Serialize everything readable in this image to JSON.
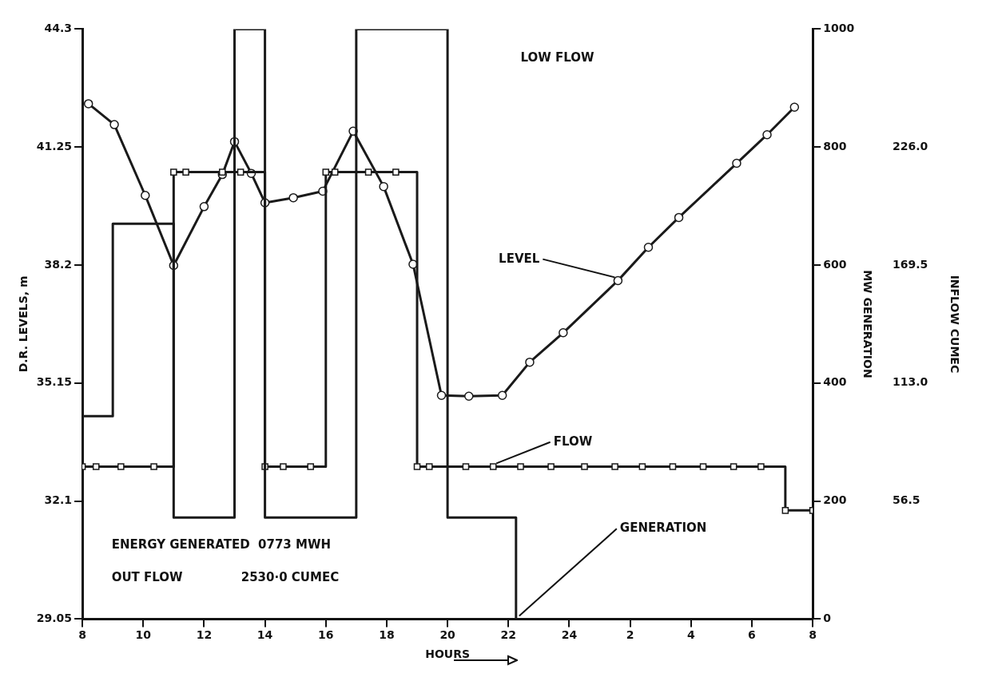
{
  "chart_data": {
    "type": "line",
    "xlabel": "HOURS",
    "ylabel": "D.R. LEVELS, m",
    "y2label": "MW GENERATION",
    "y3label": "INFLOW CUMEC",
    "xlim": [
      "--01-01T08:00",
      "--01-02T08:00"
    ],
    "xticks": [
      {
        "value": "--01-01T08:00",
        "label": "8"
      },
      {
        "value": "--01-01T10:00",
        "label": "10"
      },
      {
        "value": "--01-01T12:00",
        "label": "12"
      },
      {
        "value": "--01-01T14:00",
        "label": "14"
      },
      {
        "value": "--01-01T16:00",
        "label": "16"
      },
      {
        "value": "--01-01T18:00",
        "label": "18"
      },
      {
        "value": "--01-01T20:00",
        "label": "20"
      },
      {
        "value": "--01-01T22:00",
        "label": "22"
      },
      {
        "value": "--01-02T00:00",
        "label": "24"
      },
      {
        "value": "--01-02T02:00",
        "label": "2"
      },
      {
        "value": "--01-02T04:00",
        "label": "4"
      },
      {
        "value": "--01-02T06:00",
        "label": "6"
      },
      {
        "value": "--01-02T08:00",
        "label": "8"
      }
    ],
    "ylim": [
      29.05,
      44.3
    ],
    "yticks": [
      29.05,
      32.1,
      35.15,
      38.2,
      41.25,
      44.3
    ],
    "y2lim": [
      0,
      1000
    ],
    "y2ticks": [
      0,
      200,
      400,
      600,
      800,
      1000
    ],
    "y3lim": [
      0,
      282.5
    ],
    "y3ticks": [
      {
        "value": 56.5,
        "label": "56.5"
      },
      {
        "value": 113,
        "label": "113.0"
      },
      {
        "value": 169.5,
        "label": "169.5"
      },
      {
        "value": 226,
        "label": "226.0"
      }
    ],
    "grid": false,
    "legend": false,
    "series": [
      {
        "name": "LEVEL",
        "marker": "circle",
        "color": "#1a1a1a",
        "x": [
          "--01-01T08:12",
          "--01-01T09:03",
          "--01-01T10:04",
          "--01-01T11:00",
          "--01-01T12:00",
          "--01-01T12:36",
          "--01-01T13:00",
          "--01-01T13:33",
          "--01-01T14:00",
          "--01-01T14:56",
          "--01-01T15:54",
          "--01-01T16:54",
          "--01-01T17:54",
          "--01-01T18:52",
          "--01-01T19:48",
          "--01-01T20:42",
          "--01-01T21:48",
          "--01-01T22:42",
          "--01-01T23:48",
          "--01-02T01:36",
          "--01-02T02:36",
          "--01-02T03:36",
          "--01-02T05:30",
          "--01-02T06:30",
          "--01-02T07:24"
        ],
        "values": [
          42.37,
          41.83,
          40,
          38.19,
          39.71,
          40.54,
          41.39,
          40.57,
          39.81,
          39.94,
          40.11,
          41.66,
          40.23,
          38.22,
          34.83,
          34.81,
          34.83,
          35.69,
          36.45,
          37.8,
          38.66,
          39.43,
          40.83,
          41.57,
          42.28
        ]
      },
      {
        "name": "FLOW",
        "type": "step",
        "marker": "square",
        "axis": "y3",
        "color": "#1a1a1a",
        "x": [
          "--01-01T08:00",
          "--01-01T08:27",
          "--01-01T09:16",
          "--01-01T10:21",
          "--01-01T11:00",
          "--01-01T11:24",
          "--01-01T12:36",
          "--01-01T13:12",
          "--01-01T14:00",
          "--01-01T14:36",
          "--01-01T15:30",
          "--01-01T16:00",
          "--01-01T16:18",
          "--01-01T17:24",
          "--01-01T18:18",
          "--01-01T19:00",
          "--01-01T19:24",
          "--01-01T20:36",
          "--01-01T21:30",
          "--01-01T22:24",
          "--01-01T23:24",
          "--01-02T00:30",
          "--01-02T01:30",
          "--01-02T02:24",
          "--01-02T03:24",
          "--01-02T04:24",
          "--01-02T05:24",
          "--01-02T06:18",
          "--01-02T07:06",
          "--01-02T08:00"
        ],
        "values": [
          73,
          73,
          73,
          73,
          214,
          214,
          214,
          214,
          73,
          73,
          73,
          214,
          214,
          214,
          214,
          73,
          73,
          73,
          73,
          73,
          73,
          73,
          73,
          73,
          73,
          73,
          73,
          73,
          52,
          52
        ]
      },
      {
        "name": "GENERATION",
        "type": "step",
        "marker": "none",
        "axis": "y2",
        "color": "#1a1a1a",
        "x": [
          "--01-01T08:00",
          "--01-01T09:00",
          "--01-01T11:00",
          "--01-01T13:00",
          "--01-01T14:00",
          "--01-01T17:00",
          "--01-01T20:00",
          "--01-01T22:15"
        ],
        "values": [
          344,
          670,
          172,
          1000,
          172,
          1000,
          172,
          0
        ]
      }
    ],
    "annotations": [
      "LOW FLOW",
      "ENERGY GENERATED  0773 MWH",
      "OUT FLOW              2530·0 CUMEC"
    ]
  }
}
